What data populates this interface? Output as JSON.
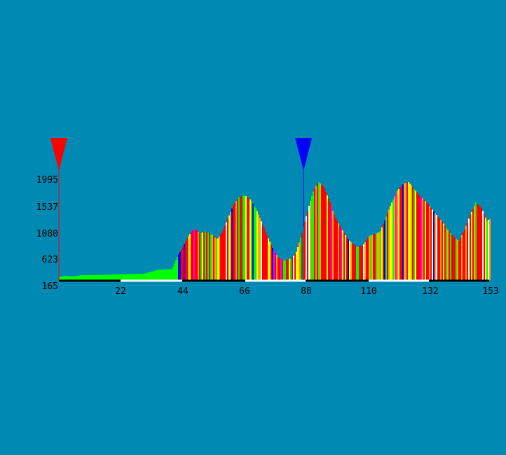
{
  "chart_data": {
    "type": "area",
    "title": "",
    "xlabel": "",
    "ylabel": "",
    "xlim": [
      0,
      153
    ],
    "ylim": [
      165,
      2000
    ],
    "x_ticks": [
      "22",
      "44",
      "66",
      "88",
      "110",
      "132",
      "153"
    ],
    "y_ticks": [
      "165",
      "623",
      "1080",
      "1537",
      "1995"
    ],
    "grid": false,
    "legend": "none",
    "segment_palette": [
      "#ff0000",
      "#ffa500",
      "#ffff00",
      "#00ff00",
      "#0000ff",
      "#ff00ff",
      "#ffffff"
    ],
    "series": [
      {
        "x": [
          0,
          2,
          4,
          6,
          7,
          12,
          20,
          30,
          33,
          35,
          40,
          42,
          44,
          46,
          48,
          50,
          52,
          54,
          56,
          58,
          60,
          62,
          64,
          66,
          68,
          70,
          72,
          74,
          76,
          78,
          80,
          82,
          84,
          86,
          88,
          90,
          92,
          94,
          96,
          98,
          100,
          102,
          104,
          106,
          108,
          110,
          112,
          114,
          116,
          118,
          120,
          122,
          124,
          126,
          128,
          130,
          132,
          134,
          136,
          138,
          140,
          142,
          144,
          146,
          148,
          150,
          152,
          153
        ],
        "y": [
          220,
          240,
          230,
          235,
          250,
          255,
          265,
          280,
          320,
          350,
          360,
          600,
          780,
          980,
          1100,
          1010,
          1050,
          1000,
          900,
          1050,
          1300,
          1550,
          1680,
          1700,
          1620,
          1450,
          1200,
          950,
          720,
          560,
          520,
          550,
          640,
          980,
          1380,
          1750,
          1950,
          1850,
          1600,
          1300,
          1120,
          950,
          830,
          760,
          800,
          960,
          1000,
          1040,
          1300,
          1560,
          1780,
          1900,
          1950,
          1820,
          1700,
          1600,
          1480,
          1350,
          1230,
          1080,
          960,
          870,
          1080,
          1340,
          1570,
          1480,
          1240,
          1270
        ]
      }
    ],
    "start_marker": {
      "x": 0,
      "color": "#ff0000"
    },
    "current_marker": {
      "x": 87,
      "color": "#0000ff"
    }
  }
}
